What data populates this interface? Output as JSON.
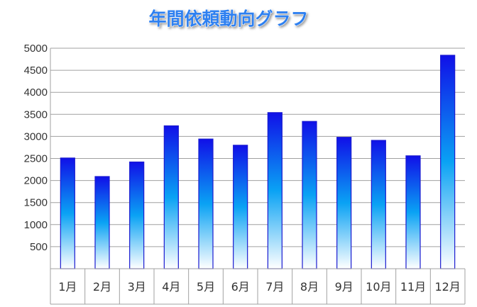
{
  "chart_data": {
    "type": "bar",
    "title": "年間依頼動向グラフ",
    "xlabel": "",
    "ylabel": "",
    "categories": [
      "1月",
      "2月",
      "3月",
      "4月",
      "5月",
      "6月",
      "7月",
      "8月",
      "9月",
      "10月",
      "11月",
      "12月"
    ],
    "values": [
      2510,
      2090,
      2420,
      3240,
      2940,
      2800,
      3540,
      3340,
      2980,
      2910,
      2560,
      4840
    ],
    "ylim": [
      0,
      5000
    ],
    "yticks": [
      500,
      1000,
      1500,
      2000,
      2500,
      3000,
      3500,
      4000,
      4500,
      5000
    ],
    "grid": true,
    "legend": "none",
    "bar_gradient": [
      "#1010e8",
      "#0aa2f4",
      "#ffffff"
    ],
    "bar_border_color": "#1a1ad0",
    "title_color": "#2f80f0"
  }
}
